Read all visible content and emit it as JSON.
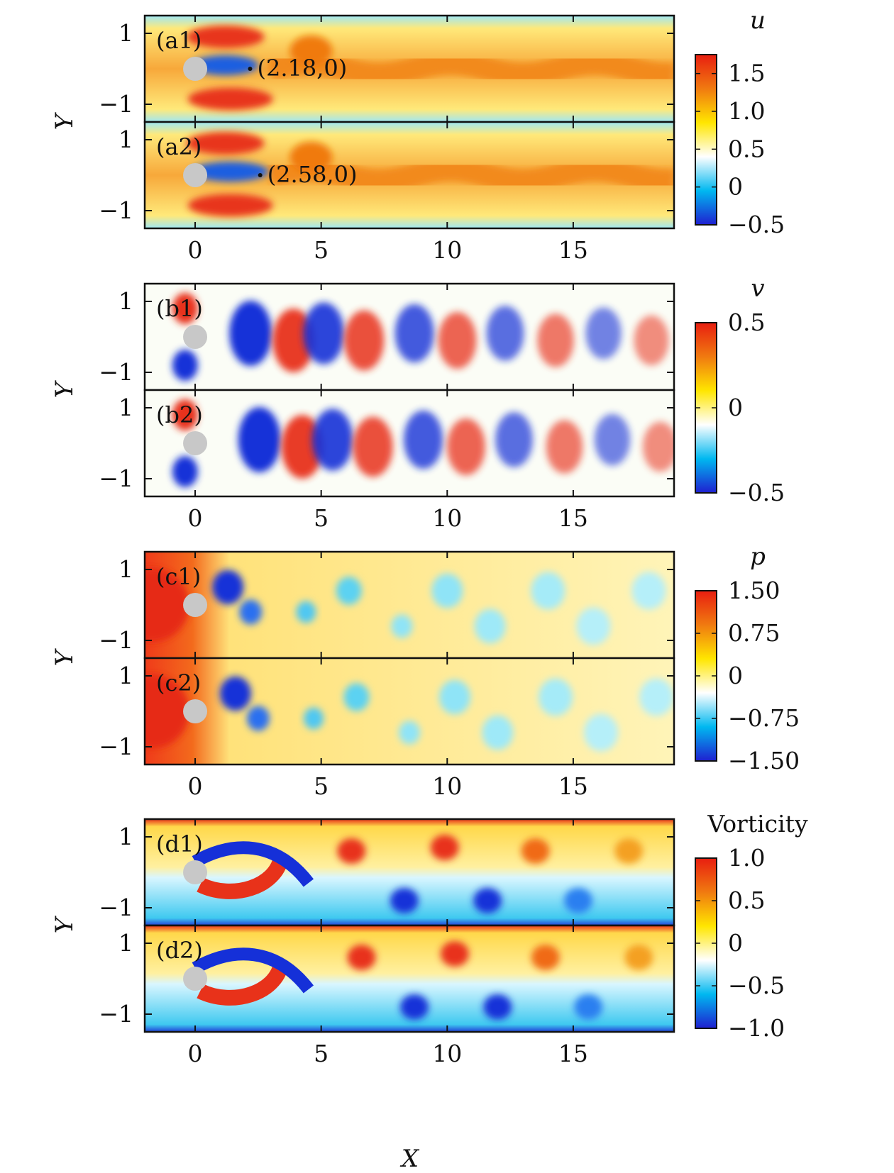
{
  "chart_data": {
    "type": "heatmap",
    "x_axis": {
      "label": "X",
      "range": [
        -2,
        19
      ],
      "ticks": [
        0,
        5,
        10,
        15
      ]
    },
    "y_axis": {
      "label": "Y",
      "range": [
        -1.5,
        1.5
      ],
      "ticks": [
        1,
        -1
      ]
    },
    "groups": [
      {
        "field": "u",
        "italic": true,
        "colorbar": {
          "min": -0.5,
          "max": 1.75,
          "ticks": [
            1.5,
            1.0,
            0.5,
            0,
            -0.5
          ],
          "tick_labels": [
            "1.5",
            "1.0",
            "0.5",
            "0",
            "−0.5"
          ]
        },
        "panels": [
          {
            "label": "(a1)",
            "annotation": {
              "text": "(2.18,0)",
              "x": 2.18,
              "y": 0
            }
          },
          {
            "label": "(a2)",
            "annotation": {
              "text": "(2.58,0)",
              "x": 2.58,
              "y": 0
            }
          }
        ]
      },
      {
        "field": "v",
        "italic": true,
        "colorbar": {
          "min": -0.5,
          "max": 0.5,
          "ticks": [
            0.5,
            0,
            -0.5
          ],
          "tick_labels": [
            "0.5",
            "0",
            "−0.5"
          ]
        },
        "panels": [
          {
            "label": "(b1)"
          },
          {
            "label": "(b2)"
          }
        ]
      },
      {
        "field": "p",
        "italic": true,
        "colorbar": {
          "min": -1.5,
          "max": 1.5,
          "ticks": [
            1.5,
            0.75,
            0,
            -0.75,
            -1.5
          ],
          "tick_labels": [
            "1.50",
            "0.75",
            "0",
            "−0.75",
            "−1.50"
          ]
        },
        "panels": [
          {
            "label": "(c1)"
          },
          {
            "label": "(c2)"
          }
        ]
      },
      {
        "field": "Vorticity",
        "italic": false,
        "colorbar": {
          "min": -1.0,
          "max": 1.0,
          "ticks": [
            1.0,
            0.5,
            0,
            -0.5,
            -1.0
          ],
          "tick_labels": [
            "1.0",
            "0.5",
            "0",
            "−0.5",
            "−1.0"
          ]
        },
        "panels": [
          {
            "label": "(d1)"
          },
          {
            "label": "(d2)"
          }
        ]
      }
    ],
    "colormap": [
      "#1f1fd0",
      "#00b8f0",
      "#ffffff",
      "#ffe600",
      "#f07a10",
      "#e81e10"
    ],
    "cylinder": {
      "x": 0,
      "y": 0,
      "color": "#c8c8c8"
    }
  }
}
